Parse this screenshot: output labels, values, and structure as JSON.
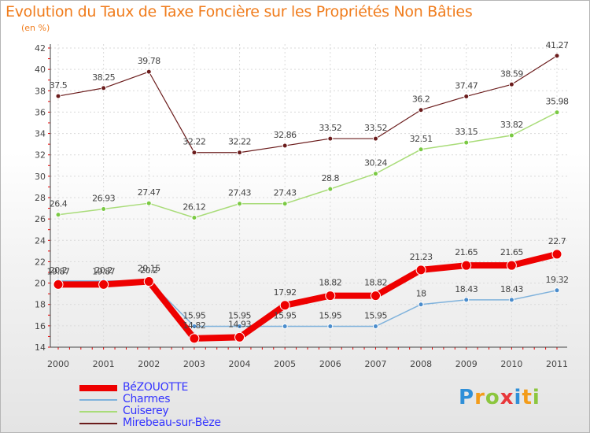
{
  "title": "Evolution du Taux de Taxe Foncière sur les Propriétés Non Bâties",
  "unit_label": "(en %)",
  "logo": {
    "letters": [
      {
        "ch": "P",
        "color": "#2f8fd8"
      },
      {
        "ch": "r",
        "color": "#f39c1a"
      },
      {
        "ch": "o",
        "color": "#8cc63e"
      },
      {
        "ch": "x",
        "color": "#e8373a"
      },
      {
        "ch": "i",
        "color": "#2f8fd8"
      },
      {
        "ch": "t",
        "color": "#f39c1a"
      },
      {
        "ch": "i",
        "color": "#8cc63e"
      }
    ]
  },
  "chart_data": {
    "type": "line",
    "title": "Evolution du Taux de Taxe Foncière sur les Propriétés Non Bâties",
    "ylabel": "(en %)",
    "xlabel": "",
    "x": [
      "2000",
      "2001",
      "2002",
      "2003",
      "2004",
      "2005",
      "2006",
      "2007",
      "2008",
      "2009",
      "2010",
      "2011"
    ],
    "ylim": [
      14,
      42
    ],
    "yticks": [
      14,
      16,
      18,
      20,
      22,
      24,
      26,
      28,
      30,
      32,
      34,
      36,
      38,
      40,
      42
    ],
    "grid": true,
    "legend_position": "bottom-left",
    "series": [
      {
        "name": "Mirebeau-sur-Bèze",
        "color": "#6b1c1c",
        "marker": "#6b1c1c",
        "width": 1.2,
        "radius": 3,
        "values": [
          37.5,
          38.25,
          39.78,
          32.22,
          32.22,
          32.86,
          33.52,
          33.52,
          36.2,
          37.47,
          38.59,
          41.27
        ],
        "labels": [
          "37.5",
          "38.25",
          "39.78",
          "32.22",
          "32.22",
          "32.86",
          "33.52",
          "33.52",
          "36.2",
          "37.47",
          "38.59",
          "41.27"
        ]
      },
      {
        "name": "Cuiserey",
        "color": "#a9dc79",
        "marker": "#7ac943",
        "width": 1.5,
        "radius": 3,
        "values": [
          26.4,
          26.93,
          27.47,
          26.12,
          27.43,
          27.43,
          28.8,
          30.24,
          32.51,
          33.15,
          33.82,
          35.98
        ],
        "labels": [
          "26.4",
          "26.93",
          "27.47",
          "26.12",
          "27.43",
          "27.43",
          "28.8",
          "30.24",
          "32.51",
          "33.15",
          "33.82",
          "35.98"
        ]
      },
      {
        "name": "Charmes",
        "color": "#7fb2dc",
        "marker": "#4a8ccc",
        "width": 1.5,
        "radius": 3,
        "values": [
          20.2,
          20.2,
          20.2,
          15.95,
          15.95,
          15.95,
          15.95,
          15.95,
          18,
          18.43,
          18.43,
          19.32
        ],
        "labels": [
          "20.2",
          "20.2",
          "20.2",
          "15.95",
          "15.95",
          "15.95",
          "15.95",
          "15.95",
          "18",
          "18.43",
          "18.43",
          "19.32"
        ]
      },
      {
        "name": "BéZOUOTTE",
        "color": "#ee0000",
        "marker": "#ee0000",
        "width": 8,
        "radius": 6,
        "values": [
          19.87,
          19.87,
          20.15,
          14.82,
          14.93,
          17.92,
          18.82,
          18.82,
          21.23,
          21.65,
          21.65,
          22.7
        ],
        "labels": [
          "19.87",
          "19.87",
          "20.15",
          "14.82",
          "14.93",
          "17.92",
          "18.82",
          "18.82",
          "21.23",
          "21.65",
          "21.65",
          "22.7"
        ]
      }
    ]
  },
  "legend": [
    {
      "name": "BéZOUOTTE",
      "color": "#ee0000",
      "width": 8
    },
    {
      "name": "Charmes",
      "color": "#7fb2dc",
      "width": 2
    },
    {
      "name": "Cuiserey",
      "color": "#a9dc79",
      "width": 2
    },
    {
      "name": "Mirebeau-sur-Bèze",
      "color": "#6b1c1c",
      "width": 2
    }
  ]
}
